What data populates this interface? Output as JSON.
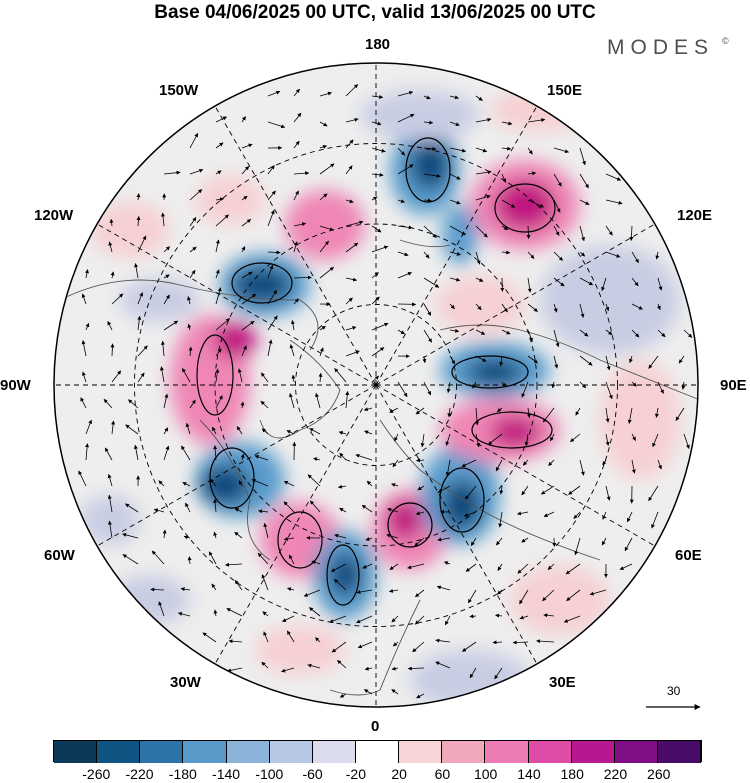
{
  "title": "Base 04/06/2025 00 UTC, valid 13/06/2025 00 UTC",
  "brand": {
    "name": "MODES",
    "mark": "©"
  },
  "map": {
    "projection": "north polar stereographic",
    "longitude_labels": [
      "180",
      "150E",
      "120E",
      "90E",
      "60E",
      "30E",
      "0",
      "30W",
      "60W",
      "90W",
      "120W",
      "150W"
    ],
    "grid": true,
    "field_palette": {
      "negative_strong": "#0d4a7c",
      "negative_mid": "#5a9ccc",
      "negative_weak": "#c9cde3",
      "neutral": "#ffffff",
      "positive_weak": "#f6d0d3",
      "positive_mid": "#ef86b6",
      "positive_strong": "#c0187f"
    }
  },
  "reference_vector": {
    "label": "30"
  },
  "colorbar": {
    "colors": [
      "#0b3957",
      "#0f5583",
      "#2c74a8",
      "#5a9acb",
      "#8cb4da",
      "#b8c7e3",
      "#dbdced",
      "#ffffff",
      "#f7d4d7",
      "#f2a8bc",
      "#ec7db4",
      "#de4ca8",
      "#b8188f",
      "#800f87",
      "#4a0a68"
    ],
    "ticks": [
      "-260",
      "-220",
      "-180",
      "-140",
      "-100",
      "-60",
      "-20",
      "20",
      "60",
      "100",
      "140",
      "180",
      "220",
      "260"
    ]
  }
}
